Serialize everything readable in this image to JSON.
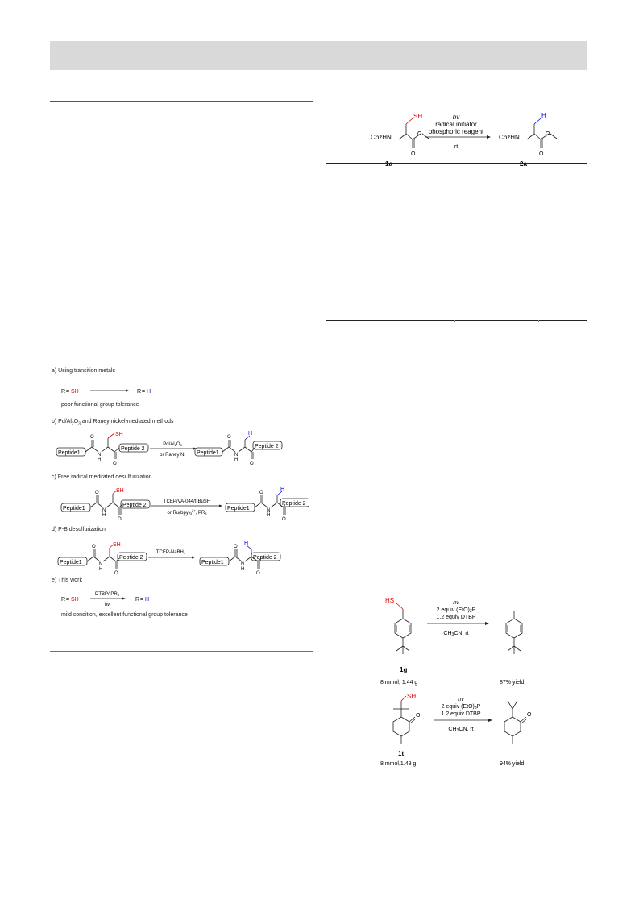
{
  "scheme_top": {
    "reactant_label": "1a",
    "reactant_group": "CbzHN",
    "reactant_sh": "SH",
    "conditions": [
      "hv",
      "radical initiator",
      "phosphoric reagent",
      "rt"
    ],
    "product_label": "2a",
    "product_group": "CbzHN",
    "product_h": "H"
  },
  "figure1": {
    "panel_a": {
      "title": "a) Using transition metals",
      "reactant_r": "R",
      "reactant_sh": "SH",
      "product_r": "R",
      "product_h": "H",
      "note": "poor functional group tolerance"
    },
    "panel_b": {
      "title": "b) Pd/Al2O3 and Raney nickel-mediated methods",
      "reagent_top": "Pd/Al2O3",
      "reagent_bottom": "or Raney Ni"
    },
    "panel_c": {
      "title": "c)  Free radical meditated desulfurization",
      "reagent_top": "TCEP/VA-044/t-BuSH",
      "reagent_bottom": "or Ru(bpy)3 2+, PR3"
    },
    "panel_d": {
      "title": "d) P-B desulfurization",
      "reagent_top": "TCEP-NaBH4"
    },
    "panel_e": {
      "title": "e) This work",
      "reactant_r": "R",
      "reactant_sh": "SH",
      "reagent_top": "DTBP/ PR3",
      "reagent_bottom": "hv",
      "product_r": "R",
      "product_h": "H",
      "note": "mild condition, excellent functional group tolerance"
    },
    "peptide1": "Peptide1",
    "peptide2": "Peptide 2",
    "sh": "SH",
    "h": "H",
    "n": "N",
    "nh_h": "H",
    "o": "O"
  },
  "scheme_scale": {
    "rxn1": {
      "reactant_sh": "HS",
      "reactant_label": "1g",
      "reactant_scale": "8 mmol, 1.44 g",
      "conditions": [
        "hv",
        "2 equiv (EtO)3P",
        "1.2 equiv DTBP",
        "CH3CN, rt"
      ],
      "yield": "87% yield"
    },
    "rxn2": {
      "reactant_sh": "SH",
      "reactant_o": "O",
      "reactant_label": "1t",
      "reactant_scale": "8 mmol,1.49 g",
      "conditions": [
        "hv",
        "2 equiv (EtO)3P",
        "1.2 equiv DTBP",
        "CH3CN, rt"
      ],
      "product_o": "O",
      "yield": "94% yield"
    }
  },
  "colors": {
    "header_band": "#d9d9d9",
    "rule_left_top": "#a0324a",
    "rule_left_bottom": "#6a6aa8",
    "sulfur_red": "#e00000",
    "hydrogen_blue": "#0000d0"
  }
}
